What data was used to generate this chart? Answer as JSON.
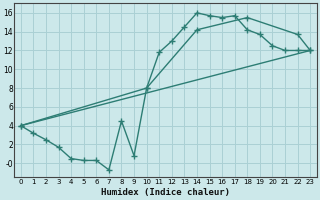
{
  "xlabel": "Humidex (Indice chaleur)",
  "xlim": [
    -0.5,
    23.5
  ],
  "ylim": [
    -1.5,
    17
  ],
  "xticks": [
    0,
    1,
    2,
    3,
    4,
    5,
    6,
    7,
    8,
    9,
    10,
    11,
    12,
    13,
    14,
    15,
    16,
    17,
    18,
    19,
    20,
    21,
    22,
    23
  ],
  "yticks": [
    0,
    2,
    4,
    6,
    8,
    10,
    12,
    14,
    16
  ],
  "ytick_labels": [
    "-0",
    "2",
    "4",
    "6",
    "8",
    "10",
    "12",
    "14",
    "16"
  ],
  "bg_color": "#cce8ea",
  "grid_color": "#aad0d4",
  "line_color": "#2d7d74",
  "line_width": 1.0,
  "marker": "+",
  "marker_size": 4,
  "marker_lw": 1.0,
  "curve1_x": [
    0,
    1,
    2,
    3,
    4,
    5,
    6,
    7,
    8,
    9,
    10,
    11,
    12,
    13,
    14,
    15,
    16,
    17,
    18,
    19,
    20,
    21,
    22,
    23
  ],
  "curve1_y": [
    4.0,
    3.2,
    2.5,
    1.7,
    0.5,
    0.3,
    0.3,
    -0.7,
    4.5,
    0.8,
    8.0,
    11.8,
    13.0,
    14.5,
    16.0,
    15.7,
    15.5,
    15.7,
    14.2,
    13.7,
    12.5,
    12.0,
    12.0,
    12.0
  ],
  "curve2_x": [
    0,
    10,
    14,
    18,
    22,
    23
  ],
  "curve2_y": [
    4.0,
    8.0,
    14.2,
    15.5,
    13.7,
    12.0
  ],
  "curve3_x": [
    0,
    23
  ],
  "curve3_y": [
    4.0,
    12.0
  ]
}
